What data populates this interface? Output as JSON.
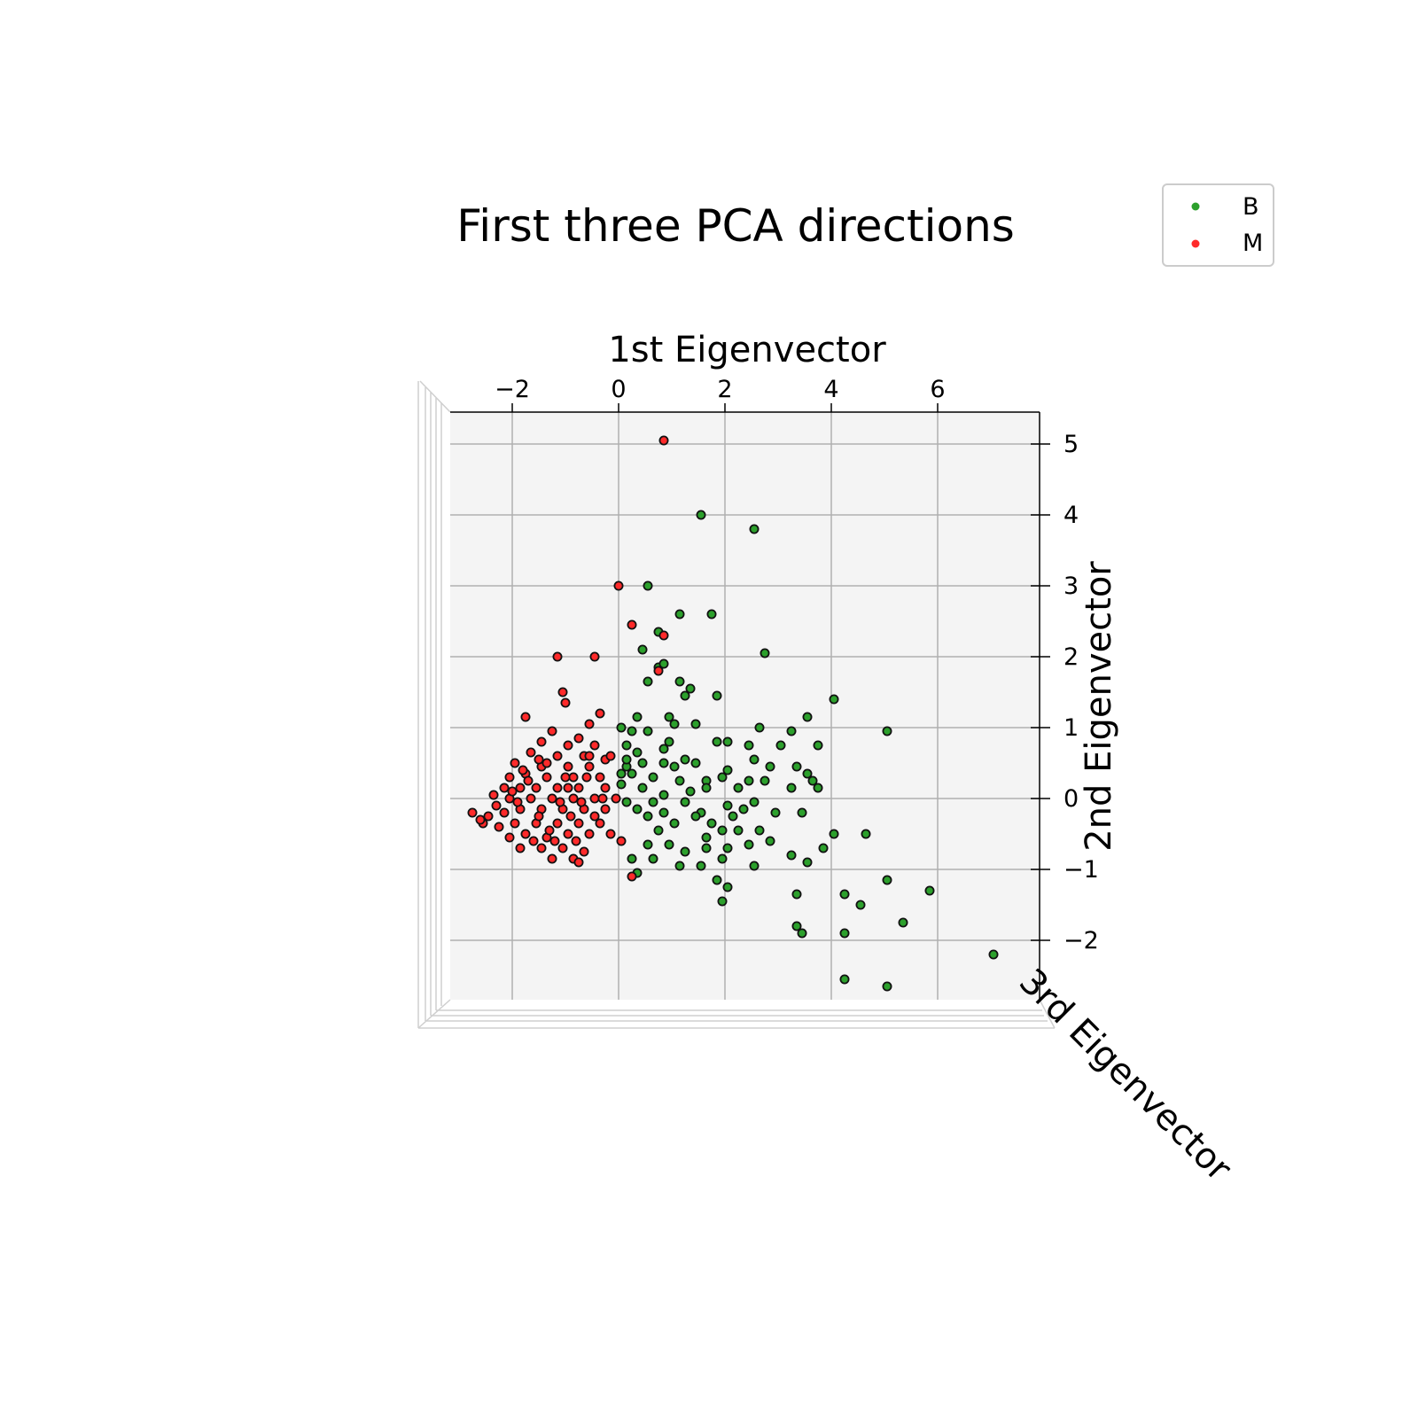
{
  "chart_data": {
    "type": "scatter",
    "title": "First three PCA directions",
    "xlabel": "1st Eigenvector",
    "ylabel": "2nd Eigenvector",
    "zlabel": "3rd Eigenvector",
    "xlim": [
      -2.5,
      7.0
    ],
    "ylim": [
      -3.0,
      5.3
    ],
    "xticks": [
      "−2",
      "0",
      "2",
      "4",
      "6"
    ],
    "xtick_values": [
      -2,
      0,
      2,
      4,
      6
    ],
    "yticks": [
      "−2",
      "−1",
      "0",
      "1",
      "2",
      "3",
      "4",
      "5"
    ],
    "ytick_values": [
      -2,
      -1,
      0,
      1,
      2,
      3,
      4,
      5
    ],
    "grid": true,
    "legend": "top-right",
    "colors": {
      "B": "#2ca02c",
      "M": "#ff2a2a",
      "edge": "#111111",
      "pane": "#f4f4f4",
      "grid": "#b0b0b0"
    },
    "series": [
      {
        "name": "B",
        "color": "#2ca02c",
        "points": [
          [
            1.55,
            4.0
          ],
          [
            2.55,
            3.8
          ],
          [
            0.55,
            3.0
          ],
          [
            1.15,
            2.6
          ],
          [
            1.75,
            2.6
          ],
          [
            0.75,
            2.35
          ],
          [
            0.45,
            2.1
          ],
          [
            2.75,
            2.05
          ],
          [
            0.75,
            1.85
          ],
          [
            0.85,
            1.9
          ],
          [
            0.55,
            1.65
          ],
          [
            1.15,
            1.65
          ],
          [
            1.35,
            1.55
          ],
          [
            1.85,
            1.45
          ],
          [
            1.25,
            1.45
          ],
          [
            4.05,
            1.4
          ],
          [
            0.35,
            1.15
          ],
          [
            0.95,
            1.15
          ],
          [
            1.05,
            1.05
          ],
          [
            1.45,
            1.05
          ],
          [
            2.65,
            1.0
          ],
          [
            3.25,
            0.95
          ],
          [
            3.55,
            1.15
          ],
          [
            0.05,
            1.0
          ],
          [
            0.25,
            0.95
          ],
          [
            0.55,
            0.95
          ],
          [
            0.95,
            0.8
          ],
          [
            0.15,
            0.75
          ],
          [
            0.85,
            0.7
          ],
          [
            1.85,
            0.8
          ],
          [
            2.05,
            0.8
          ],
          [
            2.45,
            0.75
          ],
          [
            3.05,
            0.75
          ],
          [
            3.75,
            0.75
          ],
          [
            5.05,
            0.95
          ],
          [
            0.15,
            0.45
          ],
          [
            0.45,
            0.5
          ],
          [
            0.85,
            0.5
          ],
          [
            1.25,
            0.55
          ],
          [
            1.45,
            0.5
          ],
          [
            2.05,
            0.4
          ],
          [
            2.55,
            0.55
          ],
          [
            3.35,
            0.45
          ],
          [
            3.55,
            0.35
          ],
          [
            3.65,
            0.25
          ],
          [
            0.25,
            0.35
          ],
          [
            0.65,
            0.3
          ],
          [
            1.15,
            0.25
          ],
          [
            1.65,
            0.25
          ],
          [
            1.95,
            0.3
          ],
          [
            2.45,
            0.25
          ],
          [
            2.75,
            0.25
          ],
          [
            0.05,
            0.2
          ],
          [
            0.45,
            0.15
          ],
          [
            0.85,
            0.05
          ],
          [
            1.35,
            0.1
          ],
          [
            2.25,
            0.15
          ],
          [
            3.25,
            0.15
          ],
          [
            3.75,
            0.15
          ],
          [
            0.15,
            -0.05
          ],
          [
            0.65,
            -0.05
          ],
          [
            1.25,
            -0.05
          ],
          [
            1.55,
            -0.2
          ],
          [
            2.05,
            -0.1
          ],
          [
            2.35,
            -0.15
          ],
          [
            2.95,
            -0.2
          ],
          [
            3.45,
            -0.2
          ],
          [
            0.55,
            -0.25
          ],
          [
            0.85,
            -0.2
          ],
          [
            1.45,
            -0.25
          ],
          [
            1.75,
            -0.35
          ],
          [
            2.15,
            -0.25
          ],
          [
            0.75,
            -0.45
          ],
          [
            1.05,
            -0.35
          ],
          [
            1.65,
            -0.55
          ],
          [
            1.95,
            -0.45
          ],
          [
            2.25,
            -0.45
          ],
          [
            2.65,
            -0.45
          ],
          [
            4.05,
            -0.5
          ],
          [
            4.65,
            -0.5
          ],
          [
            0.55,
            -0.65
          ],
          [
            0.95,
            -0.65
          ],
          [
            1.25,
            -0.75
          ],
          [
            1.65,
            -0.7
          ],
          [
            2.05,
            -0.7
          ],
          [
            2.45,
            -0.65
          ],
          [
            2.85,
            -0.6
          ],
          [
            3.25,
            -0.8
          ],
          [
            3.85,
            -0.7
          ],
          [
            0.25,
            -0.85
          ],
          [
            0.65,
            -0.85
          ],
          [
            1.15,
            -0.95
          ],
          [
            1.55,
            -0.95
          ],
          [
            1.95,
            -0.85
          ],
          [
            2.55,
            -0.95
          ],
          [
            3.55,
            -0.9
          ],
          [
            0.35,
            -1.05
          ],
          [
            1.85,
            -1.15
          ],
          [
            2.05,
            -1.25
          ],
          [
            3.35,
            -1.35
          ],
          [
            4.25,
            -1.35
          ],
          [
            4.55,
            -1.5
          ],
          [
            5.05,
            -1.15
          ],
          [
            5.85,
            -1.3
          ],
          [
            1.95,
            -1.45
          ],
          [
            3.35,
            -1.8
          ],
          [
            3.45,
            -1.9
          ],
          [
            4.25,
            -1.9
          ],
          [
            5.35,
            -1.75
          ],
          [
            4.25,
            -2.55
          ],
          [
            5.05,
            -2.65
          ],
          [
            7.05,
            -2.2
          ],
          [
            0.15,
            0.55
          ],
          [
            0.35,
            0.65
          ],
          [
            0.05,
            0.35
          ],
          [
            1.05,
            0.45
          ],
          [
            2.85,
            0.45
          ],
          [
            1.65,
            0.15
          ],
          [
            2.55,
            -0.05
          ],
          [
            0.35,
            -0.15
          ]
        ]
      },
      {
        "name": "M",
        "color": "#ff2a2a",
        "points": [
          [
            0.85,
            5.05
          ],
          [
            0.0,
            3.0
          ],
          [
            0.25,
            2.45
          ],
          [
            0.85,
            2.3
          ],
          [
            -1.15,
            2.0
          ],
          [
            -0.45,
            2.0
          ],
          [
            0.75,
            1.8
          ],
          [
            -1.05,
            1.5
          ],
          [
            -1.0,
            1.35
          ],
          [
            -1.75,
            1.15
          ],
          [
            -0.35,
            1.2
          ],
          [
            -0.55,
            1.05
          ],
          [
            -1.25,
            0.95
          ],
          [
            -0.75,
            0.85
          ],
          [
            -1.45,
            0.8
          ],
          [
            -0.95,
            0.75
          ],
          [
            -0.45,
            0.75
          ],
          [
            -1.65,
            0.65
          ],
          [
            -1.15,
            0.6
          ],
          [
            -0.65,
            0.6
          ],
          [
            -0.25,
            0.55
          ],
          [
            -1.95,
            0.5
          ],
          [
            -1.45,
            0.45
          ],
          [
            -0.95,
            0.45
          ],
          [
            -0.55,
            0.45
          ],
          [
            -2.05,
            0.3
          ],
          [
            -1.75,
            0.35
          ],
          [
            -1.35,
            0.3
          ],
          [
            -0.85,
            0.3
          ],
          [
            -0.35,
            0.3
          ],
          [
            -2.15,
            0.15
          ],
          [
            -1.85,
            0.15
          ],
          [
            -1.55,
            0.15
          ],
          [
            -1.15,
            0.15
          ],
          [
            -0.75,
            0.15
          ],
          [
            -0.25,
            0.15
          ],
          [
            -2.35,
            0.05
          ],
          [
            -2.05,
            0.0
          ],
          [
            -1.65,
            0.0
          ],
          [
            -1.25,
            0.0
          ],
          [
            -0.85,
            0.0
          ],
          [
            -0.45,
            0.0
          ],
          [
            -0.05,
            0.0
          ],
          [
            -2.75,
            -0.2
          ],
          [
            -2.45,
            -0.25
          ],
          [
            -2.15,
            -0.2
          ],
          [
            -1.85,
            -0.15
          ],
          [
            -1.45,
            -0.15
          ],
          [
            -1.05,
            -0.15
          ],
          [
            -0.65,
            -0.15
          ],
          [
            -0.25,
            -0.15
          ],
          [
            -2.55,
            -0.35
          ],
          [
            -2.25,
            -0.4
          ],
          [
            -1.95,
            -0.35
          ],
          [
            -1.55,
            -0.35
          ],
          [
            -1.15,
            -0.35
          ],
          [
            -0.75,
            -0.35
          ],
          [
            -0.35,
            -0.35
          ],
          [
            -2.05,
            -0.55
          ],
          [
            -1.75,
            -0.5
          ],
          [
            -1.35,
            -0.55
          ],
          [
            -0.95,
            -0.5
          ],
          [
            -0.55,
            -0.5
          ],
          [
            -0.15,
            -0.5
          ],
          [
            -1.85,
            -0.7
          ],
          [
            -1.45,
            -0.7
          ],
          [
            -1.05,
            -0.7
          ],
          [
            -0.65,
            -0.75
          ],
          [
            -1.25,
            -0.85
          ],
          [
            -0.85,
            -0.85
          ],
          [
            -0.75,
            -0.9
          ],
          [
            0.05,
            -0.6
          ],
          [
            0.25,
            -1.1
          ],
          [
            -2.0,
            0.1
          ],
          [
            -1.7,
            0.25
          ],
          [
            -1.35,
            0.5
          ],
          [
            -1.0,
            0.3
          ],
          [
            -0.6,
            0.3
          ],
          [
            -1.9,
            -0.05
          ],
          [
            -1.5,
            -0.25
          ],
          [
            -1.1,
            -0.05
          ],
          [
            -0.7,
            -0.05
          ],
          [
            -2.3,
            -0.1
          ],
          [
            -1.3,
            -0.45
          ],
          [
            -0.9,
            -0.25
          ],
          [
            -0.45,
            -0.25
          ],
          [
            -1.6,
            -0.6
          ],
          [
            -1.2,
            -0.6
          ],
          [
            -0.8,
            -0.6
          ],
          [
            -2.6,
            -0.3
          ],
          [
            -0.15,
            0.6
          ],
          [
            -0.55,
            0.6
          ],
          [
            -1.5,
            0.55
          ],
          [
            -0.95,
            0.15
          ],
          [
            -1.8,
            0.4
          ],
          [
            -0.3,
            0.0
          ]
        ]
      }
    ]
  }
}
